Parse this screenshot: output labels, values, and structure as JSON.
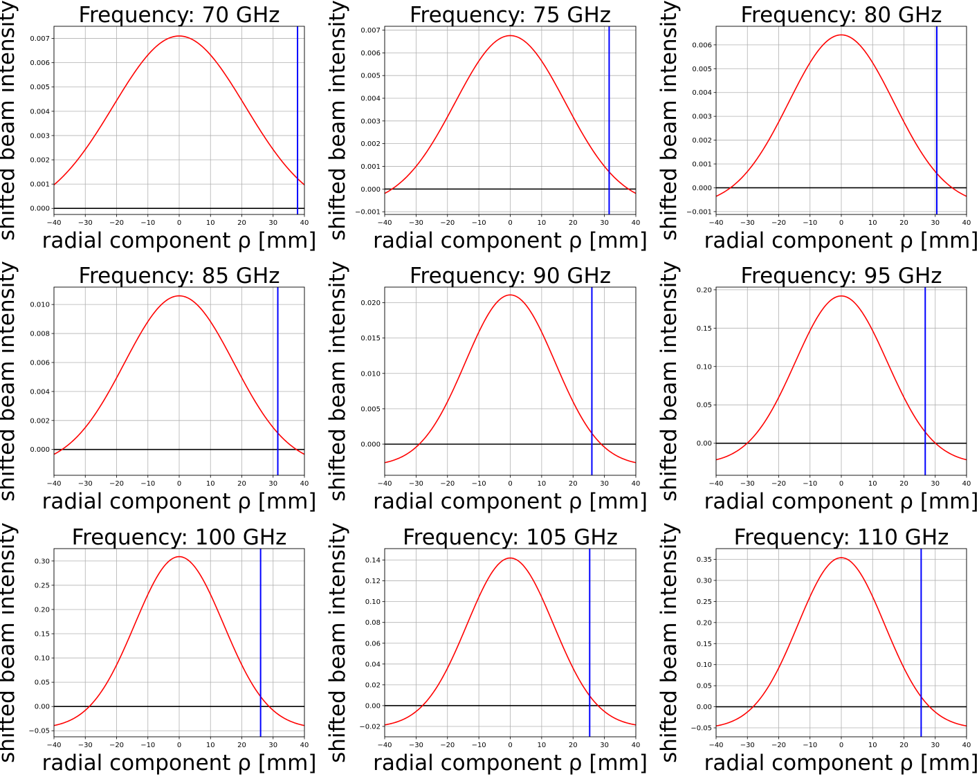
{
  "figure": {
    "xlabel": "radial component ρ [mm]",
    "ylabel": "shifted beam intensity",
    "colors": {
      "curve": "#ff0000",
      "cutoff": "#0000ff",
      "zero_line": "#000000",
      "grid": "#b0b0b0"
    }
  },
  "chart_data": [
    {
      "type": "line",
      "title": "Frequency: 70 GHz",
      "xlabel": "radial component ρ [mm]",
      "ylabel": "shifted beam intensity",
      "xlim": [
        -40,
        40
      ],
      "ylim": [
        -0.00025,
        0.0075
      ],
      "grid": true,
      "xticks": [
        -40,
        -30,
        -20,
        -10,
        0,
        10,
        20,
        30,
        40
      ],
      "xtick_labels": [
        "−40",
        "−30",
        "−20",
        "−10",
        "0",
        "10",
        "20",
        "30",
        "40"
      ],
      "yticks": [
        0,
        0.001,
        0.002,
        0.003,
        0.004,
        0.005,
        0.006,
        0.007
      ],
      "ytick_labels": [
        "0.000",
        "0.001",
        "0.002",
        "0.003",
        "0.004",
        "0.005",
        "0.006",
        "0.007"
      ],
      "series": [
        {
          "peak": 0.0071,
          "tail": -0.00025,
          "width": 21.1
        }
      ],
      "hline_y": 0,
      "vline_x": 37.8
    },
    {
      "type": "line",
      "title": "Frequency: 75 GHz",
      "xlabel": "radial component ρ [mm]",
      "ylabel": "shifted beam intensity",
      "xlim": [
        -40,
        40
      ],
      "ylim": [
        -0.00112,
        0.00717
      ],
      "grid": true,
      "xticks": [
        -40,
        -30,
        -20,
        -10,
        0,
        10,
        20,
        30,
        40
      ],
      "xtick_labels": [
        "−40",
        "−30",
        "−20",
        "−10",
        "0",
        "10",
        "20",
        "30",
        "40"
      ],
      "yticks": [
        -0.001,
        0,
        0.001,
        0.002,
        0.003,
        0.004,
        0.005,
        0.006,
        0.007
      ],
      "ytick_labels": [
        "−0.001",
        "0.000",
        "0.001",
        "0.002",
        "0.003",
        "0.004",
        "0.005",
        "0.006",
        "0.007"
      ],
      "series": [
        {
          "peak": 0.00676,
          "tail": -0.00076,
          "width": 17.6
        }
      ],
      "hline_y": 0,
      "vline_x": 31.5
    },
    {
      "type": "line",
      "title": "Frequency: 80 GHz",
      "xlabel": "radial component ρ [mm]",
      "ylabel": "shifted beam intensity",
      "xlim": [
        -40,
        40
      ],
      "ylim": [
        -0.00112,
        0.00678
      ],
      "grid": true,
      "xticks": [
        -40,
        -30,
        -20,
        -10,
        0,
        10,
        20,
        30,
        40
      ],
      "xtick_labels": [
        "−40",
        "−30",
        "−20",
        "−10",
        "0",
        "10",
        "20",
        "30",
        "40"
      ],
      "yticks": [
        -0.001,
        0,
        0.001,
        0.002,
        0.003,
        0.004,
        0.005,
        0.006
      ],
      "ytick_labels": [
        "−0.001",
        "0.000",
        "0.001",
        "0.002",
        "0.003",
        "0.004",
        "0.005",
        "0.006"
      ],
      "series": [
        {
          "peak": 0.00642,
          "tail": -0.00078,
          "width": 16.8
        }
      ],
      "hline_y": 0,
      "vline_x": 30.5
    },
    {
      "type": "line",
      "title": "Frequency: 85 GHz",
      "xlabel": "radial component ρ [mm]",
      "ylabel": "shifted beam intensity",
      "xlim": [
        -40,
        40
      ],
      "ylim": [
        -0.00178,
        0.0112
      ],
      "grid": true,
      "xticks": [
        -40,
        -30,
        -20,
        -10,
        0,
        10,
        20,
        30,
        40
      ],
      "xtick_labels": [
        "−40",
        "−30",
        "−20",
        "−10",
        "0",
        "10",
        "20",
        "30",
        "40"
      ],
      "yticks": [
        0,
        0.002,
        0.004,
        0.006,
        0.008,
        0.01
      ],
      "ytick_labels": [
        "0.000",
        "0.002",
        "0.004",
        "0.006",
        "0.008",
        "0.010"
      ],
      "series": [
        {
          "peak": 0.0106,
          "tail": -0.0012,
          "width": 17.5
        }
      ],
      "hline_y": 0,
      "vline_x": 31.5
    },
    {
      "type": "line",
      "title": "Frequency: 90 GHz",
      "xlabel": "radial component ρ [mm]",
      "ylabel": "shifted beam intensity",
      "xlim": [
        -40,
        40
      ],
      "ylim": [
        -0.0044,
        0.0222
      ],
      "grid": true,
      "xticks": [
        -40,
        -30,
        -20,
        -10,
        0,
        10,
        20,
        30,
        40
      ],
      "xtick_labels": [
        "−40",
        "−30",
        "−20",
        "−10",
        "0",
        "10",
        "20",
        "30",
        "40"
      ],
      "yticks": [
        0,
        0.005,
        0.01,
        0.015,
        0.02
      ],
      "ytick_labels": [
        "0.000",
        "0.005",
        "0.010",
        "0.015",
        "0.020"
      ],
      "series": [
        {
          "peak": 0.0211,
          "tail": -0.0031,
          "width": 14.3
        }
      ],
      "hline_y": 0,
      "vline_x": 26.0
    },
    {
      "type": "line",
      "title": "Frequency: 95 GHz",
      "xlabel": "radial component ρ [mm]",
      "ylabel": "shifted beam intensity",
      "xlim": [
        -40,
        40
      ],
      "ylim": [
        -0.0418,
        0.2035
      ],
      "grid": true,
      "xticks": [
        -40,
        -30,
        -20,
        -10,
        0,
        10,
        20,
        30,
        40
      ],
      "xtick_labels": [
        "−40",
        "−30",
        "−20",
        "−10",
        "0",
        "10",
        "20",
        "30",
        "40"
      ],
      "yticks": [
        0,
        0.05,
        0.1,
        0.15,
        0.2
      ],
      "ytick_labels": [
        "0.00",
        "0.05",
        "0.10",
        "0.15",
        "0.20"
      ],
      "series": [
        {
          "peak": 0.192,
          "tail": -0.027,
          "width": 14.7
        }
      ],
      "hline_y": 0,
      "vline_x": 26.8
    },
    {
      "type": "line",
      "title": "Frequency: 100 GHz",
      "xlabel": "radial component ρ [mm]",
      "ylabel": "shifted beam intensity",
      "xlim": [
        -40,
        40
      ],
      "ylim": [
        -0.0625,
        0.3255
      ],
      "grid": true,
      "xticks": [
        -40,
        -30,
        -20,
        -10,
        0,
        10,
        20,
        30,
        40
      ],
      "xtick_labels": [
        "−40",
        "−30",
        "−20",
        "−10",
        "0",
        "10",
        "20",
        "30",
        "40"
      ],
      "yticks": [
        -0.05,
        0,
        0.05,
        0.1,
        0.15,
        0.2,
        0.25,
        0.3
      ],
      "ytick_labels": [
        "−0.05",
        "0.00",
        "0.05",
        "0.10",
        "0.15",
        "0.20",
        "0.25",
        "0.30"
      ],
      "series": [
        {
          "peak": 0.309,
          "tail": -0.046,
          "width": 14.2
        }
      ],
      "hline_y": 0,
      "vline_x": 26.0
    },
    {
      "type": "line",
      "title": "Frequency: 105 GHz",
      "xlabel": "radial component ρ [mm]",
      "ylabel": "shifted beam intensity",
      "xlim": [
        -40,
        40
      ],
      "ylim": [
        -0.03,
        0.151
      ],
      "grid": true,
      "xticks": [
        -40,
        -30,
        -20,
        -10,
        0,
        10,
        20,
        30,
        40
      ],
      "xtick_labels": [
        "−40",
        "−30",
        "−20",
        "−10",
        "0",
        "10",
        "20",
        "30",
        "40"
      ],
      "yticks": [
        -0.02,
        0,
        0.02,
        0.04,
        0.06,
        0.08,
        0.1,
        0.12,
        0.14
      ],
      "ytick_labels": [
        "−0.02",
        "0.00",
        "0.02",
        "0.04",
        "0.06",
        "0.08",
        "0.10",
        "0.12",
        "0.14"
      ],
      "series": [
        {
          "peak": 0.142,
          "tail": -0.021,
          "width": 13.8
        }
      ],
      "hline_y": 0,
      "vline_x": 25.3
    },
    {
      "type": "line",
      "title": "Frequency: 110 GHz",
      "xlabel": "radial component ρ [mm]",
      "ylabel": "shifted beam intensity",
      "xlim": [
        -40,
        40
      ],
      "ylim": [
        -0.0713,
        0.3755
      ],
      "grid": true,
      "xticks": [
        -40,
        -30,
        -20,
        -10,
        0,
        10,
        20,
        30,
        40
      ],
      "xtick_labels": [
        "−40",
        "−30",
        "−20",
        "−10",
        "0",
        "10",
        "20",
        "30",
        "40"
      ],
      "yticks": [
        -0.05,
        0,
        0.05,
        0.1,
        0.15,
        0.2,
        0.25,
        0.3,
        0.35
      ],
      "ytick_labels": [
        "−0.05",
        "0.00",
        "0.05",
        "0.10",
        "0.15",
        "0.20",
        "0.25",
        "0.30",
        "0.35"
      ],
      "series": [
        {
          "peak": 0.354,
          "tail": -0.052,
          "width": 13.9
        }
      ],
      "hline_y": 0,
      "vline_x": 25.5
    }
  ]
}
